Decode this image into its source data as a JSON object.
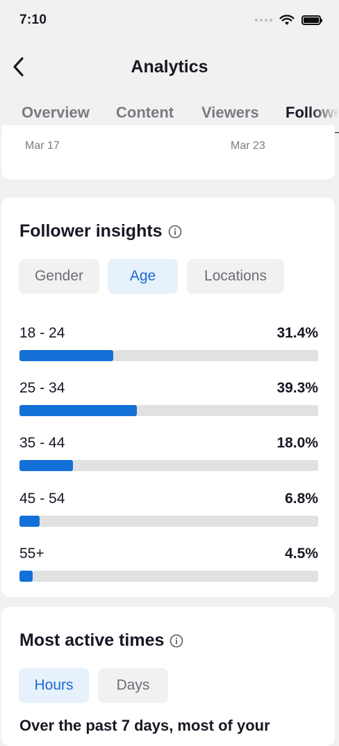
{
  "status_bar": {
    "time": "7:10"
  },
  "nav": {
    "title": "Analytics"
  },
  "tabs": [
    {
      "label": "Overview"
    },
    {
      "label": "Content"
    },
    {
      "label": "Viewers"
    },
    {
      "label": "Followers"
    }
  ],
  "date_range": {
    "start": "Mar 17",
    "end": "Mar 23"
  },
  "follower_insights": {
    "title": "Follower insights",
    "filters": [
      {
        "label": "Gender"
      },
      {
        "label": "Age"
      },
      {
        "label": "Locations"
      }
    ],
    "selected_filter": "Age",
    "age_groups": [
      {
        "label": "18 - 24",
        "percent_text": "31.4%",
        "value": 31.4
      },
      {
        "label": "25 - 34",
        "percent_text": "39.3%",
        "value": 39.3
      },
      {
        "label": "35 - 44",
        "percent_text": "18.0%",
        "value": 18.0
      },
      {
        "label": "45 - 54",
        "percent_text": "6.8%",
        "value": 6.8
      },
      {
        "label": "55+",
        "percent_text": "4.5%",
        "value": 4.5
      }
    ]
  },
  "most_active_times": {
    "title": "Most active times",
    "filters": [
      {
        "label": "Hours"
      },
      {
        "label": "Days"
      }
    ],
    "selected_filter": "Hours",
    "description_partial": "Over the past 7 days, most of your"
  },
  "colors": {
    "accent": "#1370d6",
    "chip_active_bg": "#e6f1fb",
    "chip_active_text": "#1b6ad2",
    "track": "#e1e1e1"
  }
}
